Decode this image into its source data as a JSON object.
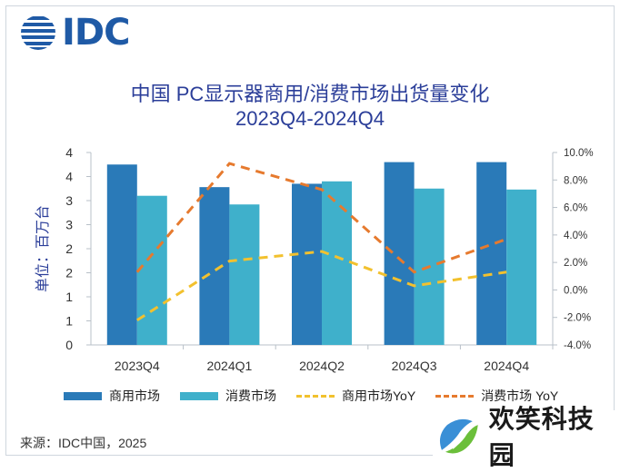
{
  "brand": {
    "logo_text": "IDC"
  },
  "watermark": {
    "text": "欢笑科技园"
  },
  "source": "来源：IDC中国，2025",
  "chart_data": {
    "type": "bar",
    "title": "中国 PC显示器商用/消费市场出货量变化",
    "subtitle": "2023Q4-2024Q4",
    "ylabel": "单位：百万台",
    "categories": [
      "2023Q4",
      "2024Q1",
      "2024Q2",
      "2024Q3",
      "2024Q4"
    ],
    "y_ticks": [
      "0",
      "1",
      "1",
      "2",
      "2",
      "3",
      "3",
      "4",
      "4"
    ],
    "y_tick_values": [
      0,
      0.5,
      1.0,
      1.5,
      2.0,
      2.5,
      3.0,
      3.5,
      4.0
    ],
    "ylim": [
      0,
      4
    ],
    "y2_ticks": [
      "-4.0%",
      "-2.0%",
      "0.0%",
      "2.0%",
      "4.0%",
      "6.0%",
      "8.0%",
      "10.0%"
    ],
    "y2_tick_values": [
      -4,
      -2,
      0,
      2,
      4,
      6,
      8,
      10
    ],
    "y2lim": [
      -4,
      10
    ],
    "series": [
      {
        "name": "商用市场",
        "kind": "bar",
        "axis": "left",
        "color": "#2a7ab8",
        "values": [
          3.75,
          3.28,
          3.35,
          3.8,
          3.8
        ]
      },
      {
        "name": "消费市场",
        "kind": "bar",
        "axis": "left",
        "color": "#3fb0cb",
        "values": [
          3.1,
          2.92,
          3.4,
          3.25,
          3.23
        ]
      },
      {
        "name": "商用市场YoY",
        "kind": "line",
        "dashed": true,
        "axis": "right",
        "color": "#f2c12e",
        "values": [
          -2.2,
          2.1,
          2.8,
          0.3,
          1.3
        ]
      },
      {
        "name": "消费市场 YoY",
        "kind": "line",
        "dashed": true,
        "axis": "right",
        "color": "#e67a2e",
        "values": [
          1.3,
          9.2,
          7.3,
          1.3,
          3.7
        ]
      }
    ],
    "grid": false,
    "legend_position": "bottom"
  }
}
